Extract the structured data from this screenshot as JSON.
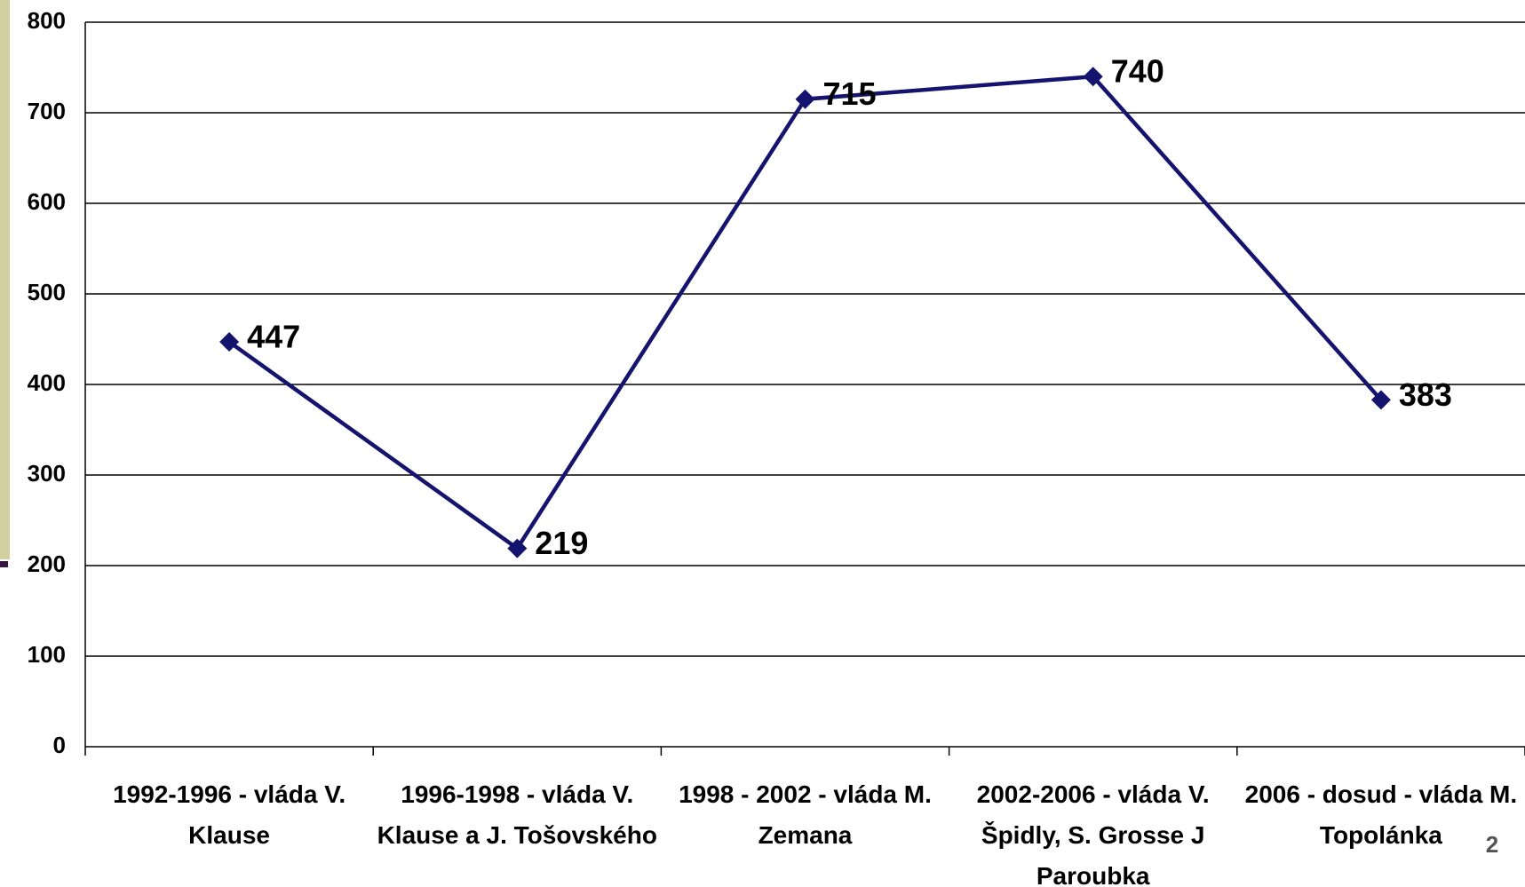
{
  "chart_data": {
    "type": "line",
    "categories": [
      "1992-1996 - vláda V. Klause",
      "1996-1998 - vláda V. Klause a J. Tošovského",
      "1998 - 2002 - vláda M. Zemana",
      "2002-2006 - vláda V. Špidly, S. Grosse  J Paroubka",
      "2006 - dosud - vláda M. Topolánka"
    ],
    "series": [
      {
        "color": "#14146e",
        "values": [
          447,
          219,
          715,
          740,
          383
        ]
      }
    ],
    "ylim": [
      0,
      800
    ],
    "yticks": [
      0,
      100,
      200,
      300,
      400,
      500,
      600,
      700,
      800
    ],
    "grid": true,
    "page_number": "2"
  }
}
